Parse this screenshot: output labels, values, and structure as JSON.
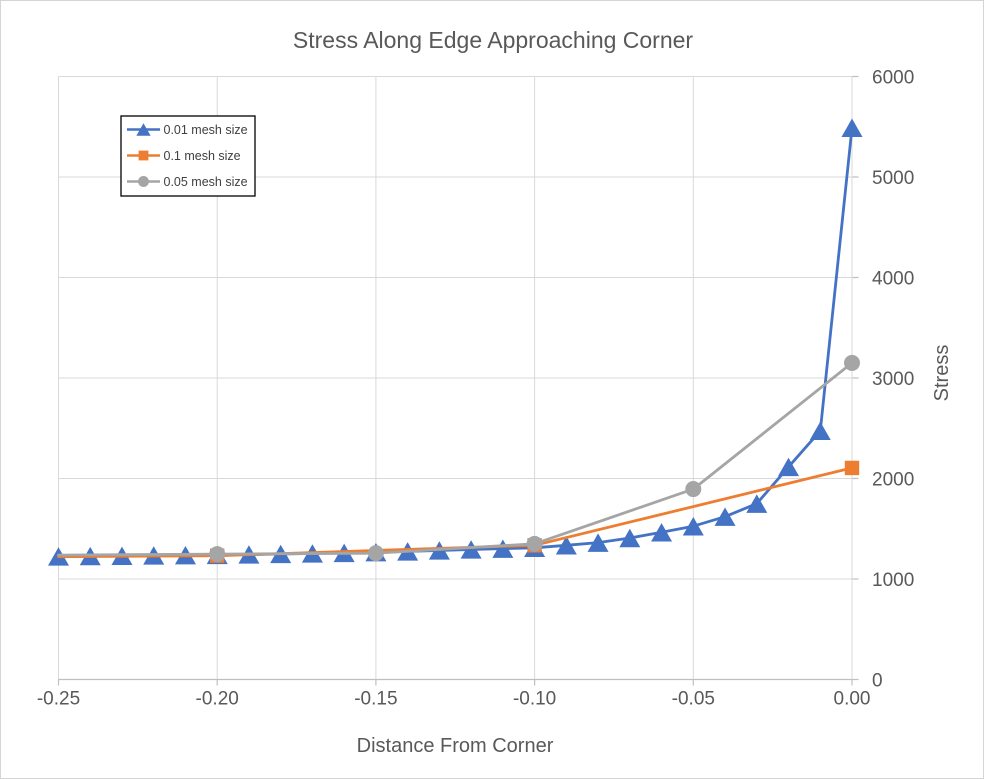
{
  "chart_data": {
    "type": "line",
    "title": "Stress Along Edge Approaching Corner",
    "xlabel": "Distance From Corner",
    "ylabel": "Stress",
    "xlim": [
      -0.25,
      0
    ],
    "ylim": [
      0,
      6000
    ],
    "grid": true,
    "legend_position": "upper-left-inside",
    "x_ticks": [
      -0.25,
      -0.2,
      -0.15,
      -0.1,
      -0.05,
      0
    ],
    "x_tick_labels": [
      "-0.25",
      "-0.20",
      "-0.15",
      "-0.10",
      "-0.05",
      "0.00"
    ],
    "y_ticks": [
      0,
      1000,
      2000,
      3000,
      4000,
      5000,
      6000
    ],
    "y_tick_labels": [
      "0",
      "1000",
      "2000",
      "3000",
      "4000",
      "5000",
      "6000"
    ],
    "colors": {
      "text": "#595959",
      "grid": "#D9D9D9",
      "axis": "#BFBFBF",
      "legend_border": "#000000",
      "frame_border": "#D5D5D5",
      "background": "#FFFFFF"
    },
    "series": [
      {
        "name": "0.01 mesh size",
        "color": "#4472C4",
        "marker": "triangle",
        "line_only_first": false,
        "x": [
          -0.25,
          -0.24,
          -0.23,
          -0.22,
          -0.21,
          -0.2,
          -0.19,
          -0.18,
          -0.17,
          -0.16,
          -0.15,
          -0.14,
          -0.13,
          -0.12,
          -0.11,
          -0.1,
          -0.09,
          -0.08,
          -0.07,
          -0.06,
          -0.05,
          -0.04,
          -0.03,
          -0.02,
          -0.01,
          0
        ],
        "y": [
          1225,
          1228,
          1231,
          1234,
          1237,
          1240,
          1244,
          1249,
          1254,
          1260,
          1267,
          1275,
          1284,
          1294,
          1302,
          1310,
          1335,
          1362,
          1408,
          1465,
          1525,
          1620,
          1750,
          2115,
          2475,
          5490
        ]
      },
      {
        "name": "0.1 mesh size",
        "color": "#ED7D31",
        "marker": "square",
        "line_only_first": true,
        "x": [
          -0.25,
          -0.2,
          -0.1,
          0
        ],
        "y": [
          1222,
          1232,
          1335,
          2105
        ]
      },
      {
        "name": "0.05 mesh size",
        "color": "#A5A5A5",
        "marker": "circle",
        "line_only_first": true,
        "x": [
          -0.25,
          -0.2,
          -0.15,
          -0.1,
          -0.05,
          0
        ],
        "y": [
          1238,
          1248,
          1257,
          1350,
          1895,
          3150
        ]
      }
    ]
  }
}
